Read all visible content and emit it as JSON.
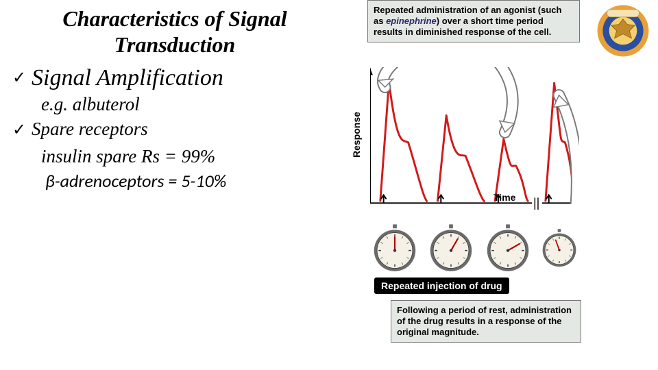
{
  "title_line1": "Characteristics of Signal",
  "title_line2": "Transduction",
  "bullets": {
    "b1": "Signal Amplification",
    "b2_pre": "e.g. albuterol",
    "b2": "Spare receptors",
    "b2_sub1": "insulin spare Rs = 99%",
    "b2_sub2": "β-adrenoceptors = 5-10%"
  },
  "checkmark": "✓",
  "figure": {
    "callout_top_pre": "Repeated administration of an agonist (such as ",
    "callout_top_em": "epinephrine",
    "callout_top_post": ") over a short time period results in diminished response of the cell.",
    "callout_bottom": "Following a period of rest, administration of the drug results in a response of the original magnitude.",
    "y_axis": "Response",
    "x_axis": "Time",
    "black_strip": "Repeated injection of drug",
    "axis_break": "||",
    "chart": {
      "type": "line",
      "background_color": "#ffffff",
      "axis_color": "#000000",
      "series_color": "#d11a1a",
      "series_width": 3,
      "peaks": [
        {
          "x_start": 15,
          "x_peak": 28,
          "x_end": 85,
          "y_peak": 180,
          "y_second": 90
        },
        {
          "x_start": 100,
          "x_peak": 113,
          "x_end": 170,
          "y_peak": 130,
          "y_second": 70
        },
        {
          "x_start": 185,
          "x_peak": 198,
          "x_end": 235,
          "y_peak": 95,
          "y_second": 55
        },
        {
          "x_start": 260,
          "x_peak": 273,
          "x_end": 305,
          "y_peak": 178,
          "y_second": 90
        }
      ],
      "x_break_at": 245,
      "xlim": [
        0,
        310
      ],
      "ylim": [
        0,
        200
      ]
    },
    "stopwatch": {
      "face_color": "#f5f1e6",
      "rim_color": "#6b6b6b",
      "needle_color": "#b00000",
      "angles_deg": [
        0,
        30,
        60,
        340
      ]
    },
    "arrows": {
      "stroke": "#ffffff",
      "outline": "#7a7a7a",
      "width": 14
    }
  },
  "logo": {
    "outer": "#e8a13a",
    "mid": "#2b4fa0",
    "inner": "#f4d06f",
    "scroll": "#f2e4b5"
  }
}
